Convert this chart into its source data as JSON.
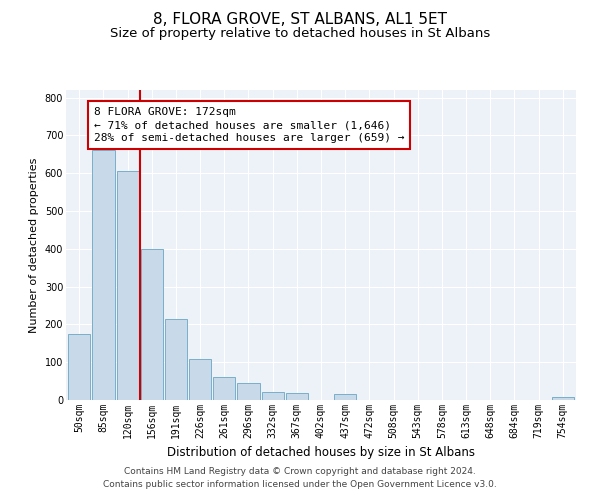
{
  "title": "8, FLORA GROVE, ST ALBANS, AL1 5ET",
  "subtitle": "Size of property relative to detached houses in St Albans",
  "xlabel": "Distribution of detached houses by size in St Albans",
  "ylabel": "Number of detached properties",
  "bin_labels": [
    "50sqm",
    "85sqm",
    "120sqm",
    "156sqm",
    "191sqm",
    "226sqm",
    "261sqm",
    "296sqm",
    "332sqm",
    "367sqm",
    "402sqm",
    "437sqm",
    "472sqm",
    "508sqm",
    "543sqm",
    "578sqm",
    "613sqm",
    "648sqm",
    "684sqm",
    "719sqm",
    "754sqm"
  ],
  "bar_heights": [
    175,
    660,
    605,
    400,
    215,
    108,
    60,
    45,
    20,
    18,
    0,
    15,
    0,
    0,
    0,
    0,
    0,
    0,
    0,
    0,
    8
  ],
  "bar_color": "#c8d9ea",
  "bar_edge_color": "#7aaec8",
  "vline_index": 3,
  "vline_color": "#cc0000",
  "annotation_line1": "8 FLORA GROVE: 172sqm",
  "annotation_line2": "← 71% of detached houses are smaller (1,646)",
  "annotation_line3": "28% of semi-detached houses are larger (659) →",
  "annotation_box_color": "#cc0000",
  "ylim": [
    0,
    820
  ],
  "yticks": [
    0,
    100,
    200,
    300,
    400,
    500,
    600,
    700,
    800
  ],
  "background_color": "#edf2f8",
  "grid_color": "#ffffff",
  "footnote1": "Contains HM Land Registry data © Crown copyright and database right 2024.",
  "footnote2": "Contains public sector information licensed under the Open Government Licence v3.0.",
  "title_fontsize": 11,
  "subtitle_fontsize": 9.5,
  "xlabel_fontsize": 8.5,
  "ylabel_fontsize": 8,
  "tick_fontsize": 7,
  "annotation_fontsize": 8,
  "footnote_fontsize": 6.5
}
